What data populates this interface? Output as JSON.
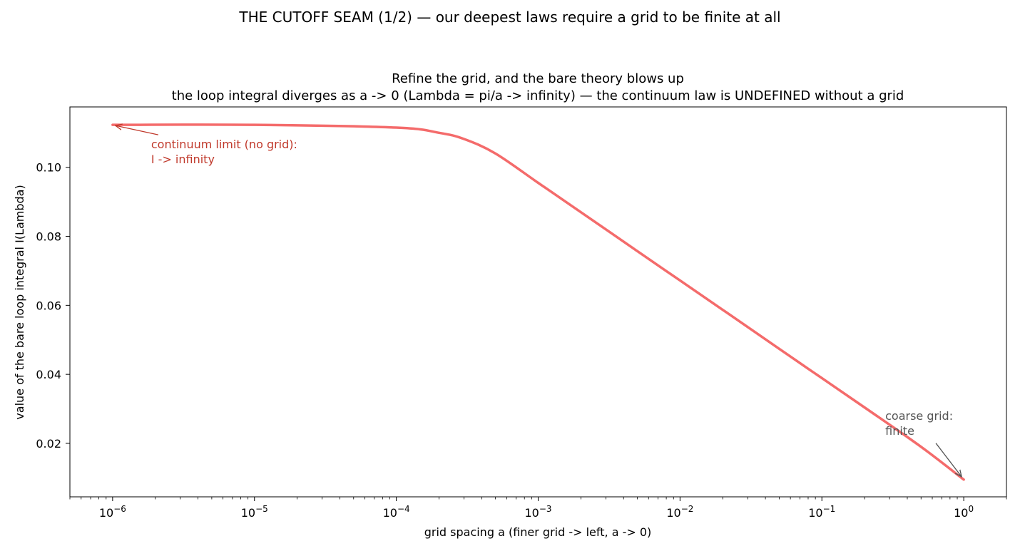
{
  "figure": {
    "suptitle": "THE CUTOFF SEAM (1/2) — our deepest laws require a grid to be finite at all"
  },
  "chart_data": {
    "type": "line",
    "title": "Refine the grid, and the bare theory blows up",
    "subtitle": "the loop integral diverges as a -> 0 (Lambda = pi/a -> infinity) — the continuum law is UNDEFINED without a grid",
    "xlabel": "grid spacing  a   (finer grid  ->  left,  a -> 0)",
    "ylabel": "value of the bare loop integral  I(Lambda)",
    "x_scale": "log",
    "xlim": [
      5e-07,
      2
    ],
    "ylim": [
      0.0045,
      0.1175
    ],
    "x_ticks": [
      1e-06,
      1e-05,
      0.0001,
      0.001,
      0.01,
      0.1,
      1
    ],
    "x_tick_labels": [
      {
        "base": "10",
        "exp": "−6"
      },
      {
        "base": "10",
        "exp": "−5"
      },
      {
        "base": "10",
        "exp": "−4"
      },
      {
        "base": "10",
        "exp": "−3"
      },
      {
        "base": "10",
        "exp": "−2"
      },
      {
        "base": "10",
        "exp": "−1"
      },
      {
        "base": "10",
        "exp": "0"
      }
    ],
    "y_ticks": [
      0.02,
      0.04,
      0.06,
      0.08,
      0.1
    ],
    "y_tick_labels": [
      "0.02",
      "0.04",
      "0.06",
      "0.08",
      "0.10"
    ],
    "grid": false,
    "series": [
      {
        "color": "#f46b6b",
        "x": [
          1e-06,
          1e-05,
          0.0001,
          0.0002,
          0.0003,
          0.0005,
          0.001,
          0.002,
          0.005,
          0.01,
          0.02,
          0.05,
          0.1,
          0.2,
          0.5,
          1
        ],
        "y": [
          0.1123,
          0.1123,
          0.1115,
          0.11,
          0.1082,
          0.104,
          0.0955,
          0.087,
          0.0757,
          0.0672,
          0.0587,
          0.0474,
          0.0389,
          0.0304,
          0.019,
          0.0095
        ]
      }
    ],
    "annotations": [
      {
        "lines": [
          "continuum limit (no grid):",
          "I -> infinity"
        ],
        "color": "#c0392b",
        "target_x": 1e-06,
        "target_y": 0.1123
      },
      {
        "lines": [
          "coarse grid:",
          "finite"
        ],
        "color": "#555555",
        "target_x": 1,
        "target_y": 0.0095
      }
    ]
  }
}
